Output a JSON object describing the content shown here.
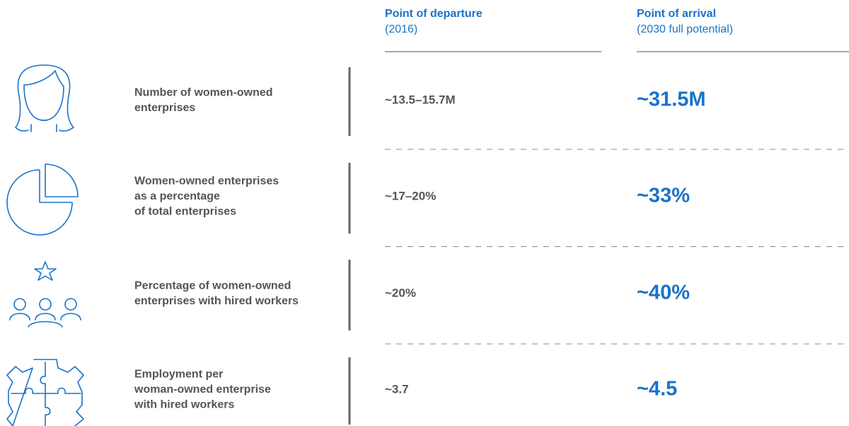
{
  "header": {
    "departure": {
      "title": "Point of departure",
      "subtitle": "(2016)"
    },
    "arrival": {
      "title": "Point of arrival",
      "subtitle": "(2030 full potential)"
    }
  },
  "rows": [
    {
      "label": [
        "Number of women-owned",
        "enterprises"
      ],
      "departure": "~13.5–15.7M",
      "arrival": "~31.5M"
    },
    {
      "label": [
        "Women-owned enterprises",
        "as a percentage",
        "of total enterprises"
      ],
      "departure": "~17–20%",
      "arrival": "~33%"
    },
    {
      "label": [
        "Percentage of women-owned",
        "enterprises with hired workers"
      ],
      "departure": "~20%",
      "arrival": "~40%"
    },
    {
      "label": [
        "Employment per",
        "woman-owned enterprise",
        "with hired workers"
      ],
      "departure": "~3.7",
      "arrival": "~4.5"
    }
  ]
}
